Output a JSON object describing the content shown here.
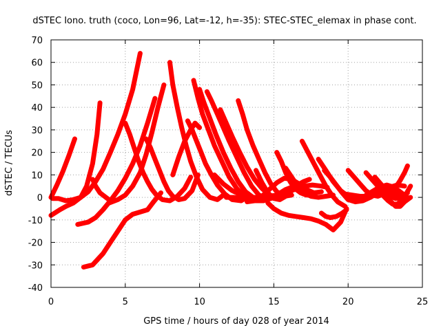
{
  "chart_data": {
    "type": "line",
    "title": "dSTEC Iono. truth (coco, Lon=96, Lat=-12, h=-35): STEC-STEC_elemax in phase cont.",
    "xlabel": "GPS time / hours of day 028 of year 2014",
    "ylabel": "dSTEC  / TECUs",
    "xlim": [
      0,
      25
    ],
    "ylim": [
      -40,
      70
    ],
    "xticks": [
      0,
      5,
      10,
      15,
      20,
      25
    ],
    "yticks": [
      -40,
      -30,
      -20,
      -10,
      0,
      10,
      20,
      30,
      40,
      50,
      60,
      70
    ],
    "grid": true,
    "legend": "none",
    "color": "#ff0000",
    "series": [
      {
        "x": [
          0.0,
          0.4,
          0.8,
          1.2,
          1.6
        ],
        "y": [
          0.0,
          5.5,
          11.5,
          18.5,
          26.0
        ]
      },
      {
        "x": [
          0.0,
          0.6,
          1.0,
          1.5,
          2.0,
          2.4,
          2.8,
          3.1,
          3.3
        ],
        "y": [
          -8.0,
          -5.5,
          -4.0,
          -2.5,
          0.0,
          5.0,
          15.0,
          28.0,
          42.0
        ]
      },
      {
        "x": [
          0.1,
          0.5,
          1.0,
          1.5,
          2.0,
          2.5,
          3.0,
          3.5,
          4.0,
          4.5,
          5.0,
          5.5,
          6.0
        ],
        "y": [
          -0.5,
          -0.5,
          -1.5,
          -1.0,
          0.0,
          2.5,
          7.0,
          12.5,
          20.0,
          28.0,
          37.0,
          48.0,
          64.0
        ]
      },
      {
        "x": [
          1.8,
          2.5,
          3.0,
          3.5,
          4.0,
          4.5,
          5.0,
          5.5,
          6.0,
          6.5,
          7.0
        ],
        "y": [
          -12.0,
          -11.0,
          -9.0,
          -5.5,
          -1.5,
          3.0,
          8.5,
          15.0,
          23.0,
          33.0,
          44.0
        ]
      },
      {
        "x": [
          2.2,
          2.8,
          3.5,
          4.0,
          4.5,
          5.0,
          5.5,
          6.0,
          6.5,
          6.9,
          7.4
        ],
        "y": [
          -31.0,
          -30.0,
          -25.0,
          -20.0,
          -15.0,
          -10.0,
          -7.5,
          -6.5,
          -5.5,
          -2.0,
          2.0
        ]
      },
      {
        "x": [
          2.8,
          3.0,
          3.3,
          3.6,
          3.9
        ],
        "y": [
          8.0,
          5.0,
          2.0,
          0.5,
          -1.0
        ]
      },
      {
        "x": [
          3.9,
          4.5,
          5.0,
          5.5,
          6.0,
          6.4,
          6.8,
          7.2,
          7.6
        ],
        "y": [
          -2.5,
          -1.0,
          1.0,
          5.0,
          11.0,
          19.0,
          29.0,
          40.0,
          50.0
        ]
      },
      {
        "x": [
          5.0,
          5.3,
          5.6,
          5.9,
          6.2,
          6.5,
          6.8,
          7.1,
          7.5,
          8.0,
          8.5,
          9.0,
          9.4
        ],
        "y": [
          33.0,
          28.0,
          22.0,
          16.0,
          11.0,
          7.0,
          3.5,
          1.0,
          -1.0,
          -1.5,
          0.5,
          4.0,
          9.0
        ]
      },
      {
        "x": [
          6.4,
          6.7,
          7.0,
          7.3,
          7.6,
          7.9,
          8.2,
          8.6,
          9.0,
          9.5,
          9.9
        ],
        "y": [
          26.0,
          22.0,
          17.0,
          12.0,
          7.0,
          3.0,
          0.5,
          -1.0,
          -0.5,
          3.0,
          10.0
        ]
      },
      {
        "x": [
          8.0,
          8.2,
          8.5,
          8.8,
          9.1,
          9.4,
          9.8,
          10.2,
          10.7,
          11.2,
          11.6
        ],
        "y": [
          60.0,
          50.0,
          40.0,
          31.0,
          23.0,
          16.0,
          9.0,
          3.5,
          0.0,
          -1.0,
          1.0
        ]
      },
      {
        "x": [
          8.2,
          8.6,
          9.0,
          9.4,
          9.7,
          10.0
        ],
        "y": [
          10.0,
          18.0,
          25.0,
          30.0,
          33.0,
          31.0
        ]
      },
      {
        "x": [
          9.2,
          9.5,
          9.8,
          10.1,
          10.4,
          10.8,
          11.2,
          11.7,
          12.2,
          12.8,
          13.3
        ],
        "y": [
          34.0,
          30.0,
          25.0,
          20.0,
          15.0,
          10.0,
          5.5,
          1.5,
          -1.0,
          -1.5,
          0.5
        ]
      },
      {
        "x": [
          9.6,
          9.9,
          10.2,
          10.6,
          11.0,
          11.5,
          12.0,
          12.5,
          13.0,
          13.5,
          14.0
        ],
        "y": [
          52.0,
          44.0,
          37.0,
          30.0,
          23.0,
          16.0,
          9.0,
          4.0,
          0.5,
          -1.5,
          -1.0
        ]
      },
      {
        "x": [
          10.0,
          10.3,
          10.7,
          11.1,
          11.6,
          12.1,
          12.6,
          13.1,
          13.6,
          14.1
        ],
        "y": [
          48.0,
          42.0,
          35.0,
          28.0,
          20.0,
          13.0,
          7.0,
          2.5,
          0.0,
          -1.0
        ]
      },
      {
        "x": [
          10.5,
          10.8,
          11.2,
          11.6,
          12.0,
          12.5,
          13.0,
          13.5,
          14.0,
          14.6,
          15.2
        ],
        "y": [
          47.0,
          43.0,
          37.0,
          31.0,
          25.0,
          18.0,
          11.0,
          5.0,
          1.0,
          -0.5,
          0.0
        ]
      },
      {
        "x": [
          11.4,
          11.8,
          12.2,
          12.7,
          13.2,
          13.7,
          14.2,
          14.7,
          15.2,
          15.6
        ],
        "y": [
          39.0,
          33.0,
          27.0,
          20.0,
          13.5,
          8.0,
          4.0,
          1.0,
          0.0,
          0.5
        ]
      },
      {
        "x": [
          12.6,
          12.9,
          13.2,
          13.6,
          14.0,
          14.4,
          14.8,
          15.2,
          15.7,
          16.2
        ],
        "y": [
          43.0,
          37.0,
          30.0,
          23.0,
          17.0,
          11.0,
          6.0,
          2.5,
          0.5,
          1.0
        ]
      },
      {
        "x": [
          11.8,
          12.3,
          12.8,
          13.3,
          13.8,
          14.3,
          14.8,
          15.3,
          15.8,
          16.4,
          17.0
        ],
        "y": [
          0.0,
          0.0,
          -0.5,
          -1.0,
          -1.5,
          -1.5,
          -0.5,
          1.5,
          3.5,
          5.0,
          4.5
        ]
      },
      {
        "x": [
          11.0,
          11.6,
          12.2,
          12.8,
          13.4,
          14.0,
          14.6,
          15.2,
          15.8,
          16.4,
          17.0,
          17.6,
          18.2,
          18.6
        ],
        "y": [
          10.0,
          6.0,
          3.0,
          1.0,
          0.0,
          0.0,
          0.5,
          1.0,
          2.0,
          3.5,
          5.0,
          5.5,
          5.0,
          4.5
        ]
      },
      {
        "x": [
          13.2,
          13.7,
          14.2,
          14.7,
          15.2,
          15.7,
          16.2,
          16.7,
          17.2,
          17.7,
          18.2
        ],
        "y": [
          -2.0,
          -1.5,
          0.5,
          3.5,
          6.5,
          8.5,
          8.0,
          6.0,
          3.5,
          2.0,
          2.5
        ]
      },
      {
        "x": [
          14.6,
          15.0,
          15.5,
          16.0,
          16.5,
          17.0,
          17.5,
          18.0,
          18.5,
          19.0,
          19.5,
          19.9
        ],
        "y": [
          -2.5,
          -5.0,
          -7.0,
          -8.0,
          -8.5,
          -9.0,
          -9.5,
          -10.5,
          -12.0,
          -14.5,
          -11.0,
          -5.0
        ]
      },
      {
        "x": [
          13.8,
          14.2,
          14.6,
          15.0,
          15.4,
          15.8,
          16.2,
          16.6,
          17.0,
          17.4
        ],
        "y": [
          12.0,
          6.5,
          2.0,
          -0.5,
          -1.0,
          0.5,
          3.0,
          5.5,
          7.0,
          8.0
        ]
      },
      {
        "x": [
          15.2,
          15.5,
          15.8,
          16.1,
          16.4,
          16.8,
          17.2
        ],
        "y": [
          20.0,
          16.0,
          11.0,
          7.0,
          4.0,
          2.0,
          1.0
        ]
      },
      {
        "x": [
          15.8,
          16.2,
          16.6,
          17.0,
          17.5,
          18.0,
          18.5,
          19.0
        ],
        "y": [
          13.0,
          9.0,
          5.0,
          2.0,
          0.5,
          0.0,
          0.5,
          1.0
        ]
      },
      {
        "x": [
          16.9,
          17.3,
          17.7,
          18.1,
          18.5,
          18.9,
          19.3,
          19.8
        ],
        "y": [
          25.0,
          20.0,
          15.0,
          10.0,
          5.0,
          1.0,
          -2.0,
          -4.0
        ]
      },
      {
        "x": [
          18.0,
          18.5,
          19.0,
          19.5,
          20.0,
          20.5,
          21.0,
          21.5
        ],
        "y": [
          17.0,
          12.0,
          7.0,
          3.0,
          0.5,
          -1.0,
          -1.0,
          0.5
        ]
      },
      {
        "x": [
          18.4,
          18.8,
          19.2,
          19.6,
          20.0,
          20.5,
          21.0,
          21.5,
          22.0
        ],
        "y": [
          12.0,
          9.0,
          5.5,
          2.0,
          -1.0,
          -2.0,
          -1.5,
          0.0,
          2.0
        ]
      },
      {
        "x": [
          18.2,
          18.5,
          18.8,
          19.2,
          19.6,
          19.9
        ],
        "y": [
          -7.0,
          -8.5,
          -9.0,
          -8.5,
          -7.0,
          -5.5
        ]
      },
      {
        "x": [
          20.0,
          20.4,
          20.8,
          21.2,
          21.6,
          22.0,
          22.4,
          22.8
        ],
        "y": [
          12.0,
          9.0,
          6.0,
          3.0,
          1.0,
          0.5,
          1.5,
          3.5
        ]
      },
      {
        "x": [
          19.8,
          20.3,
          20.8,
          21.3,
          21.8,
          22.3,
          22.8,
          23.3,
          23.8
        ],
        "y": [
          1.5,
          1.0,
          0.5,
          0.5,
          1.5,
          3.0,
          4.5,
          5.5,
          5.0
        ]
      },
      {
        "x": [
          20.6,
          21.1,
          21.6,
          22.1,
          22.6,
          23.1,
          23.6,
          24.0
        ],
        "y": [
          -0.5,
          0.5,
          2.5,
          4.5,
          5.5,
          4.5,
          2.0,
          0.0
        ]
      },
      {
        "x": [
          21.2,
          21.6,
          22.0,
          22.4,
          22.8,
          23.2
        ],
        "y": [
          11.0,
          8.0,
          5.0,
          2.5,
          0.5,
          -0.5
        ]
      },
      {
        "x": [
          21.8,
          22.2,
          22.6,
          23.0,
          23.4,
          23.8
        ],
        "y": [
          9.0,
          6.0,
          3.0,
          0.5,
          -0.5,
          1.0
        ]
      },
      {
        "x": [
          22.0,
          22.4,
          22.8,
          23.2,
          23.6,
          24.0
        ],
        "y": [
          5.0,
          3.0,
          1.0,
          -0.5,
          0.0,
          2.0
        ]
      },
      {
        "x": [
          22.4,
          22.7,
          23.0,
          23.3,
          23.6,
          23.9,
          24.2
        ],
        "y": [
          0.5,
          -1.5,
          -3.0,
          -3.0,
          -1.5,
          1.5,
          5.0
        ]
      },
      {
        "x": [
          22.6,
          22.9,
          23.2,
          23.5,
          23.8,
          24.2
        ],
        "y": [
          0.0,
          -2.0,
          -4.0,
          -4.0,
          -2.0,
          0.0
        ]
      },
      {
        "x": [
          22.6,
          22.9,
          23.2,
          23.5,
          23.8,
          24.0
        ],
        "y": [
          1.5,
          2.5,
          4.5,
          7.5,
          11.0,
          14.0
        ]
      },
      {
        "x": [
          22.8,
          23.0,
          23.2,
          23.4
        ],
        "y": [
          5.0,
          3.0,
          1.5,
          0.5
        ]
      }
    ]
  }
}
